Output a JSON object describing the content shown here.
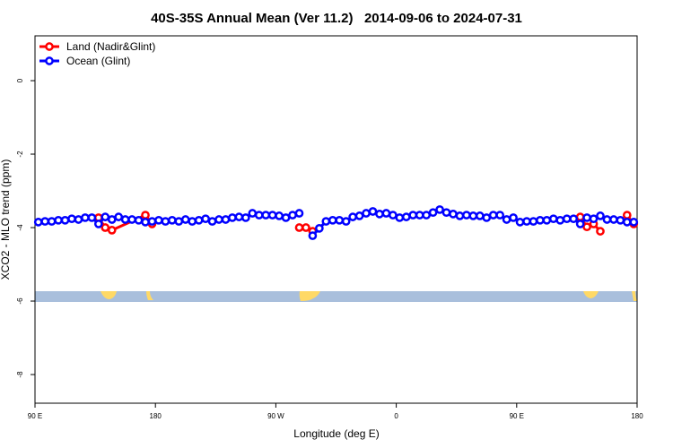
{
  "chart_data": {
    "type": "line",
    "title": "40S-35S Annual Mean (Ver 11.2)   2014-09-06 to 2024-07-31",
    "x_label": "Longitude (deg E)",
    "y_label": "XCO2 - MLO trend (ppm)",
    "xlim": [
      90,
      540
    ],
    "xticks": [
      {
        "value": 90,
        "label": "90 E"
      },
      180,
      {
        "value": 270,
        "label": "90 W"
      },
      {
        "value": 360,
        "label": "0"
      },
      {
        "value": 450,
        "label": "90 E"
      },
      {
        "value": 540,
        "label": "180"
      }
    ],
    "ylim": [
      -8.78,
      1.22
    ],
    "yticks": [
      0,
      -2,
      -4,
      -6,
      -8
    ],
    "legend": "top-left",
    "series": [
      {
        "name": "Land (Nadir&Glint)",
        "color": "#ff0000",
        "x": [
          137.5,
          142.5,
          147.5,
          172.5,
          177.5,
          182.5,
          287.5,
          292.5,
          297.5,
          302.5,
          497.5,
          502.5,
          507.5,
          512.5,
          517.5,
          532.5,
          537.5
        ],
        "values": [
          -3.73,
          -4.0,
          -4.07,
          -3.66,
          -3.9,
          null,
          -4.0,
          -4.0,
          -4.1,
          null,
          -3.71,
          -3.98,
          -3.9,
          -4.1,
          null,
          -3.66,
          -3.9
        ]
      },
      {
        "name": "Ocean (Glint)",
        "color": "#0000ff",
        "x": [
          92.5,
          97.5,
          102.5,
          107.5,
          112.5,
          117.5,
          122.5,
          127.5,
          132.5,
          137.5,
          142.5,
          147.5,
          152.5,
          157.5,
          162.5,
          167.5,
          172.5,
          177.5,
          182.5,
          187.5,
          192.5,
          197.5,
          202.5,
          207.5,
          212.5,
          217.5,
          222.5,
          227.5,
          232.5,
          237.5,
          242.5,
          247.5,
          252.5,
          257.5,
          262.5,
          267.5,
          272.5,
          277.5,
          282.5,
          287.5,
          292.5,
          297.5,
          302.5,
          307.5,
          312.5,
          317.5,
          322.5,
          327.5,
          332.5,
          337.5,
          342.5,
          347.5,
          352.5,
          357.5,
          362.5,
          367.5,
          372.5,
          377.5,
          382.5,
          387.5,
          392.5,
          397.5,
          402.5,
          407.5,
          412.5,
          417.5,
          422.5,
          427.5,
          432.5,
          437.5,
          442.5,
          447.5,
          452.5,
          457.5,
          462.5,
          467.5,
          472.5,
          477.5,
          482.5,
          487.5,
          492.5,
          497.5,
          502.5,
          507.5,
          512.5,
          517.5,
          522.5,
          527.5,
          532.5,
          537.5
        ],
        "values": [
          -3.85,
          -3.83,
          -3.83,
          -3.8,
          -3.8,
          -3.76,
          -3.78,
          -3.73,
          -3.73,
          -3.9,
          -3.71,
          -3.78,
          -3.71,
          -3.78,
          -3.78,
          -3.8,
          -3.85,
          -3.83,
          -3.8,
          -3.83,
          -3.8,
          -3.83,
          -3.78,
          -3.83,
          -3.8,
          -3.76,
          -3.83,
          -3.78,
          -3.78,
          -3.73,
          -3.71,
          -3.73,
          -3.61,
          -3.66,
          -3.66,
          -3.66,
          -3.68,
          -3.73,
          -3.66,
          -3.61,
          null,
          -4.22,
          -4.02,
          -3.83,
          -3.8,
          -3.8,
          -3.83,
          -3.71,
          -3.68,
          -3.61,
          -3.56,
          -3.63,
          -3.61,
          -3.66,
          -3.73,
          -3.71,
          -3.66,
          -3.66,
          -3.66,
          -3.59,
          -3.51,
          -3.59,
          -3.63,
          -3.68,
          -3.66,
          -3.68,
          -3.68,
          -3.73,
          -3.66,
          -3.66,
          -3.78,
          -3.73,
          -3.85,
          -3.83,
          -3.83,
          -3.8,
          -3.8,
          -3.76,
          -3.8,
          -3.76,
          -3.76,
          -3.9,
          -3.73,
          -3.76,
          -3.68,
          -3.78,
          -3.78,
          -3.8,
          -3.85,
          -3.85
        ]
      }
    ]
  }
}
